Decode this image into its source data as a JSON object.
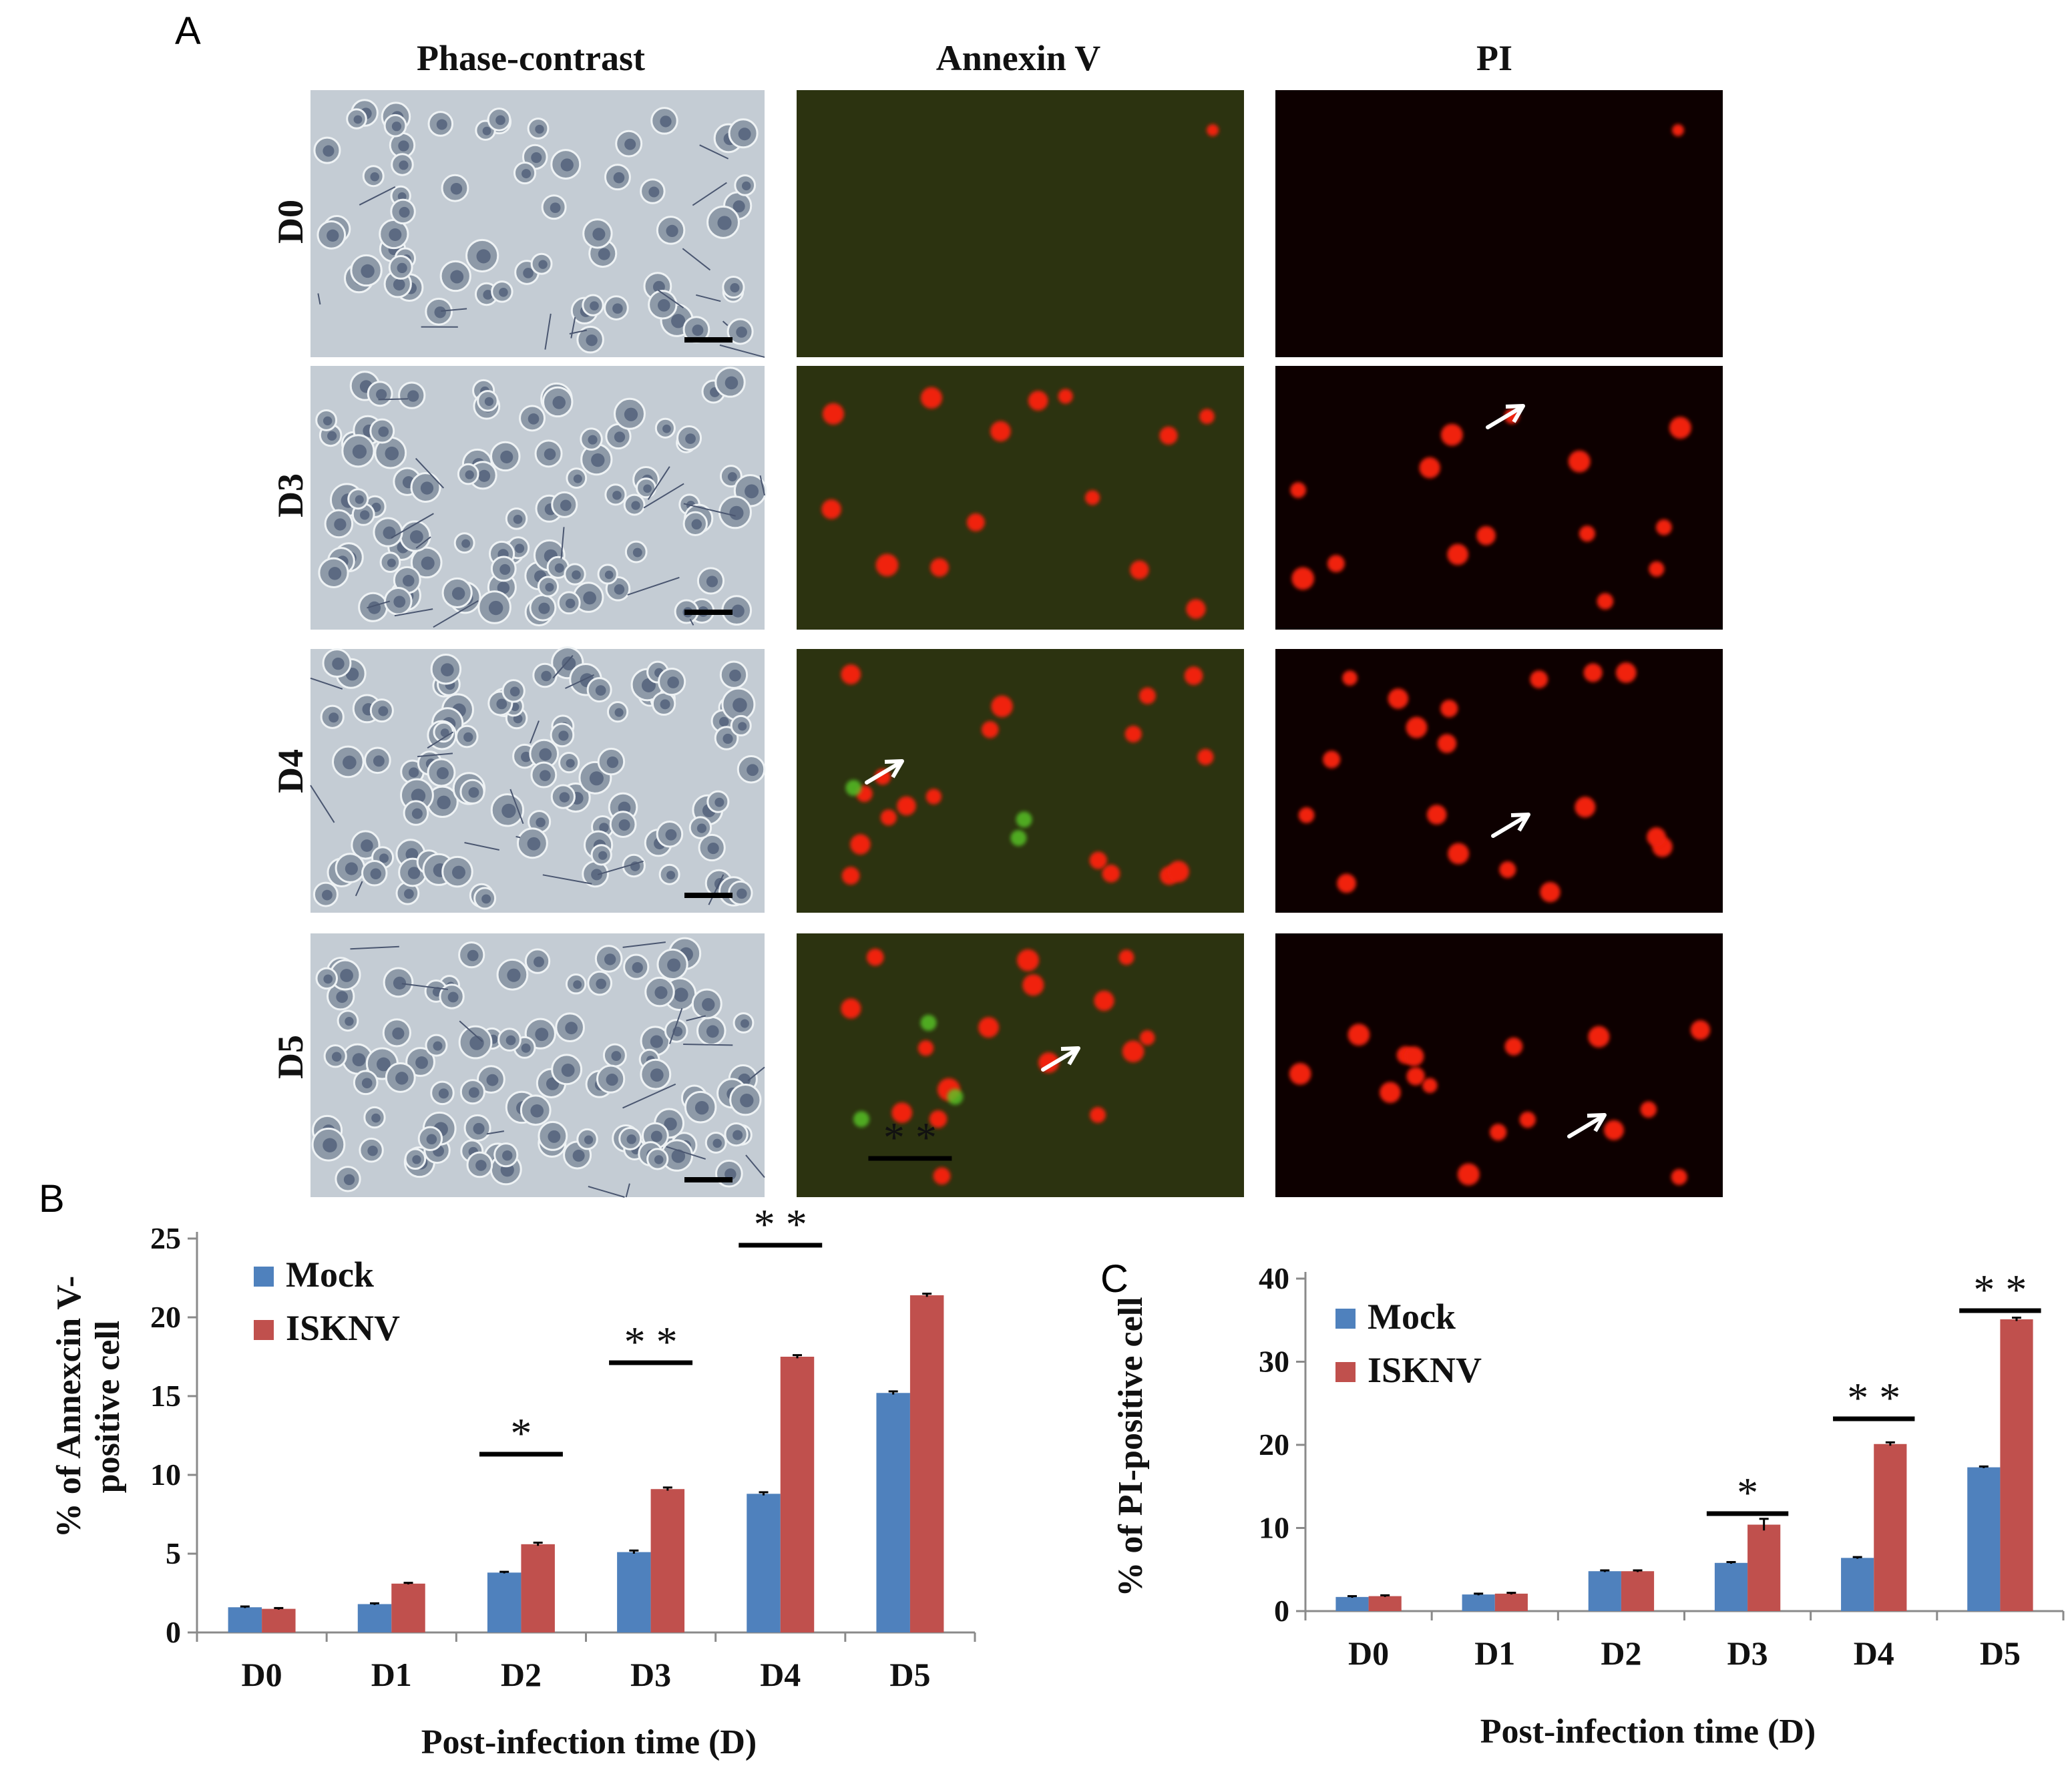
{
  "colors": {
    "mock": "#4f81bd",
    "iskinv": "#c0504d",
    "phase_bg": "#c4ccd4",
    "annexin_bg": "#2c3310",
    "pi_bg": "#0d0000",
    "cell_red": "#f02010",
    "cell_green": "#58c828"
  },
  "panel_a": {
    "letter": "A",
    "columns": [
      "Phase-contrast",
      "Annexin V",
      "PI"
    ],
    "rows": [
      "D0",
      "D3",
      "D4",
      "D5"
    ]
  },
  "chart_data": [
    {
      "panel": "B",
      "type": "bar",
      "categories": [
        "D0",
        "D1",
        "D2",
        "D3",
        "D4",
        "D5"
      ],
      "series": [
        {
          "name": "Mock",
          "values": [
            1.6,
            1.8,
            3.8,
            5.1,
            8.8,
            15.2
          ]
        },
        {
          "name": "ISKNV",
          "values": [
            1.5,
            3.1,
            5.6,
            9.1,
            17.5,
            21.4
          ]
        }
      ],
      "errors": [
        [
          0.05,
          0.05,
          0.05,
          0.1,
          0.1,
          0.1
        ],
        [
          0.05,
          0.05,
          0.1,
          0.1,
          0.1,
          0.1
        ]
      ],
      "significance": [
        "",
        "",
        "*",
        "* *",
        "* *",
        "* *"
      ],
      "xlabel": "Post-infection time (D)",
      "ylabel": [
        "% of Annexcin V-",
        "positive cell"
      ],
      "ylim": [
        0,
        25
      ],
      "yticks": [
        0,
        5,
        10,
        15,
        20,
        25
      ],
      "legend_position": "top-left",
      "grid": false
    },
    {
      "panel": "C",
      "type": "bar",
      "categories": [
        "D0",
        "D1",
        "D2",
        "D3",
        "D4",
        "D5"
      ],
      "series": [
        {
          "name": "Mock",
          "values": [
            1.7,
            2.0,
            4.8,
            5.8,
            6.4,
            17.3
          ]
        },
        {
          "name": "ISKNV",
          "values": [
            1.8,
            2.1,
            4.8,
            10.4,
            20.1,
            35.1
          ]
        }
      ],
      "errors": [
        [
          0.1,
          0.1,
          0.1,
          0.1,
          0.1,
          0.1
        ],
        [
          0.1,
          0.1,
          0.1,
          0.7,
          0.2,
          0.2
        ]
      ],
      "significance": [
        "",
        "",
        "",
        "*",
        "* *",
        "* *"
      ],
      "xlabel": "Post-infection time (D)",
      "ylabel": [
        "% of PI-positive cell"
      ],
      "ylim": [
        0,
        40
      ],
      "yticks": [
        0,
        10,
        20,
        30,
        40
      ],
      "legend_position": "top-left",
      "grid": false
    }
  ]
}
